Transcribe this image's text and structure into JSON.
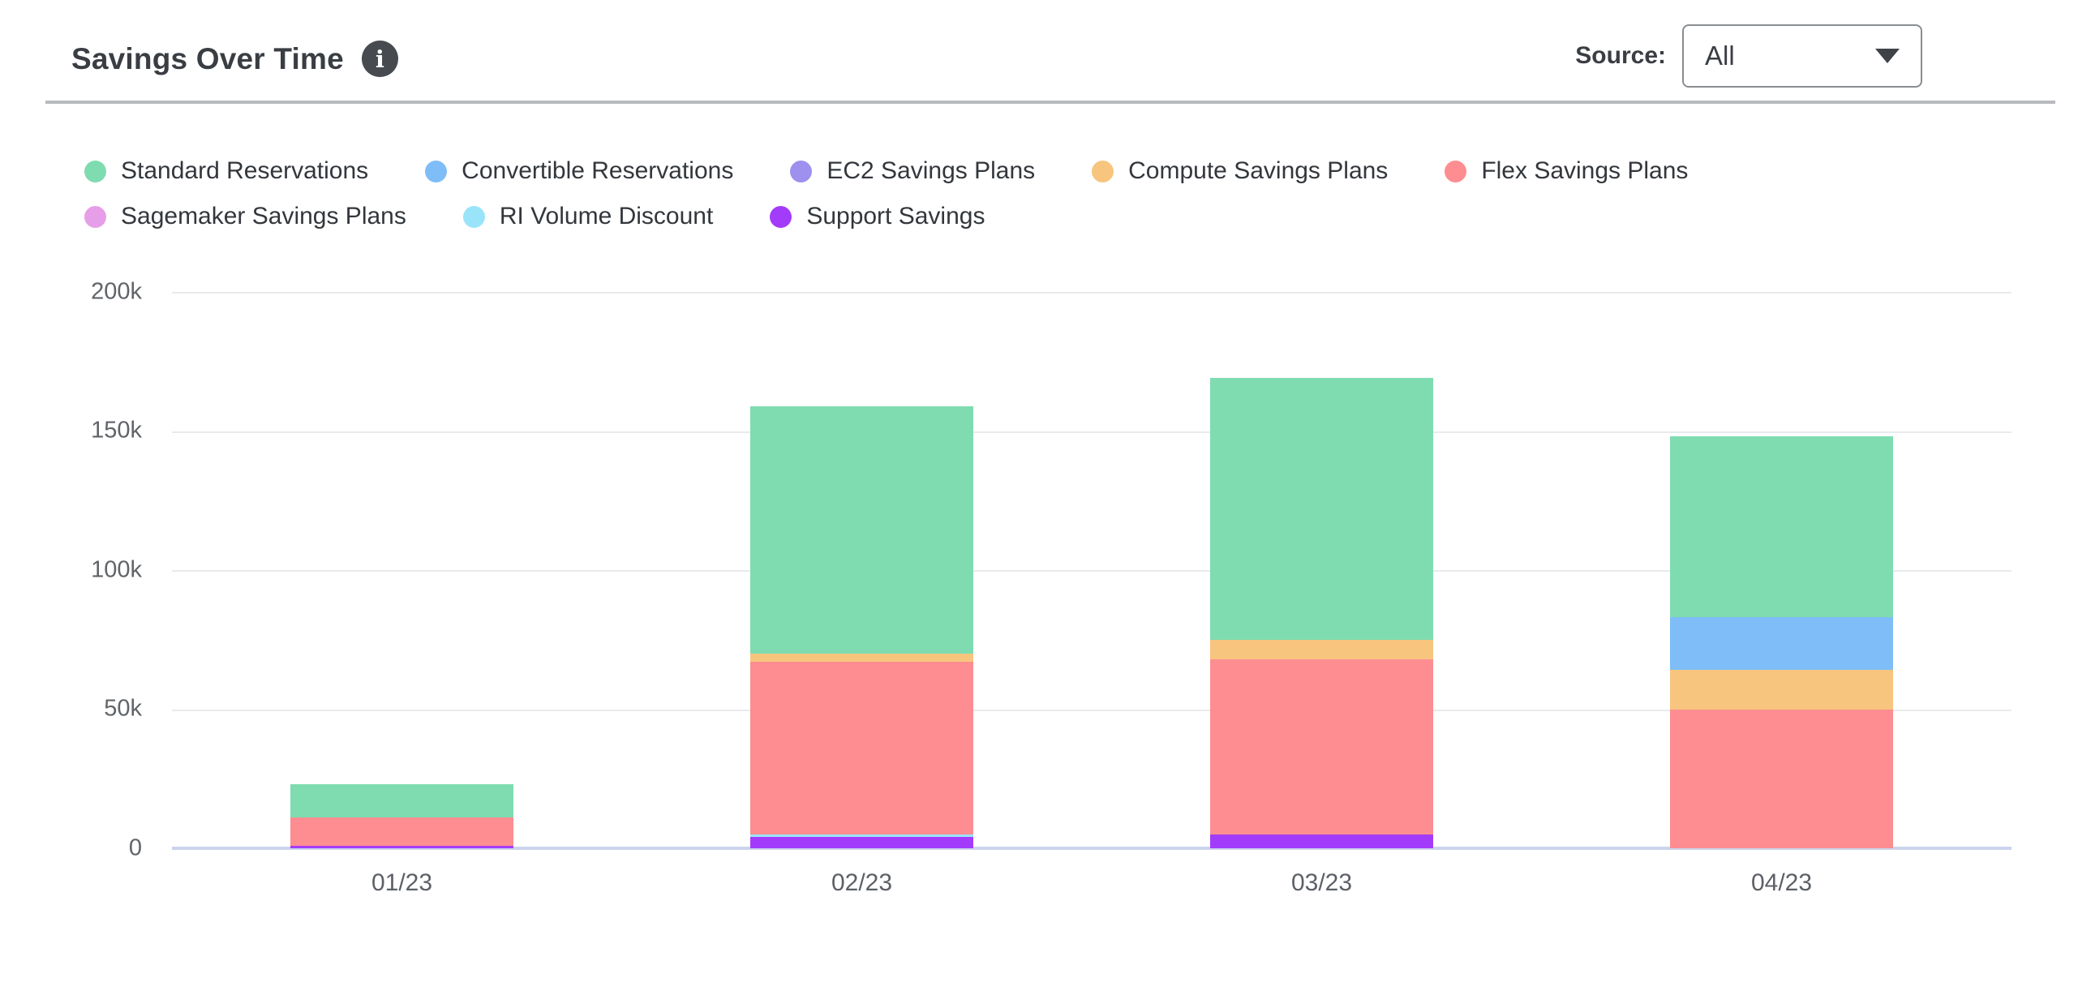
{
  "header": {
    "title": "Savings Over Time",
    "info_glyph": "i",
    "source_label": "Source:",
    "source_value": "All",
    "caret_icon": "caret-down"
  },
  "chart_data": {
    "type": "bar",
    "stacked": true,
    "title": "Savings Over Time",
    "xlabel": "",
    "ylabel": "",
    "categories": [
      "01/23",
      "02/23",
      "03/23",
      "04/23"
    ],
    "series": [
      {
        "name": "Standard Reservations",
        "color": "#7fdcb0",
        "values_k": [
          12,
          89,
          94,
          65
        ]
      },
      {
        "name": "Convertible Reservations",
        "color": "#7fbdf8",
        "values_k": [
          0,
          0,
          0,
          19
        ]
      },
      {
        "name": "EC2 Savings Plans",
        "color": "#9d90ee",
        "values_k": [
          0,
          0,
          0,
          0
        ]
      },
      {
        "name": "Compute Savings Plans",
        "color": "#f7c57e",
        "values_k": [
          0,
          3,
          7,
          14
        ]
      },
      {
        "name": "Flex Savings Plans",
        "color": "#fd8d90",
        "values_k": [
          10,
          62,
          63,
          50
        ]
      },
      {
        "name": "Sagemaker Savings Plans",
        "color": "#e79ee9",
        "values_k": [
          0,
          0,
          0,
          0
        ]
      },
      {
        "name": "RI Volume Discount",
        "color": "#9ae4fa",
        "values_k": [
          0,
          1,
          0,
          0
        ]
      },
      {
        "name": "Support Savings",
        "color": "#a33cfa",
        "values_k": [
          1,
          4,
          5,
          0
        ]
      }
    ],
    "stack_order": "reverse-of-legend (Support Savings at bottom, Standard Reservations on top)",
    "totals_k": [
      23,
      159,
      169,
      148
    ],
    "y_ticks": [
      "0",
      "50k",
      "100k",
      "150k",
      "200k"
    ],
    "ylim_k": [
      0,
      200
    ],
    "unit": "thousands of dollars saved per month",
    "grid": true,
    "legend_position": "top-left",
    "colors": {
      "gridline": "#e8eaed",
      "baseline": "#ccd4ec",
      "tick_text": "#606468",
      "legend_text": "#33373c"
    }
  }
}
